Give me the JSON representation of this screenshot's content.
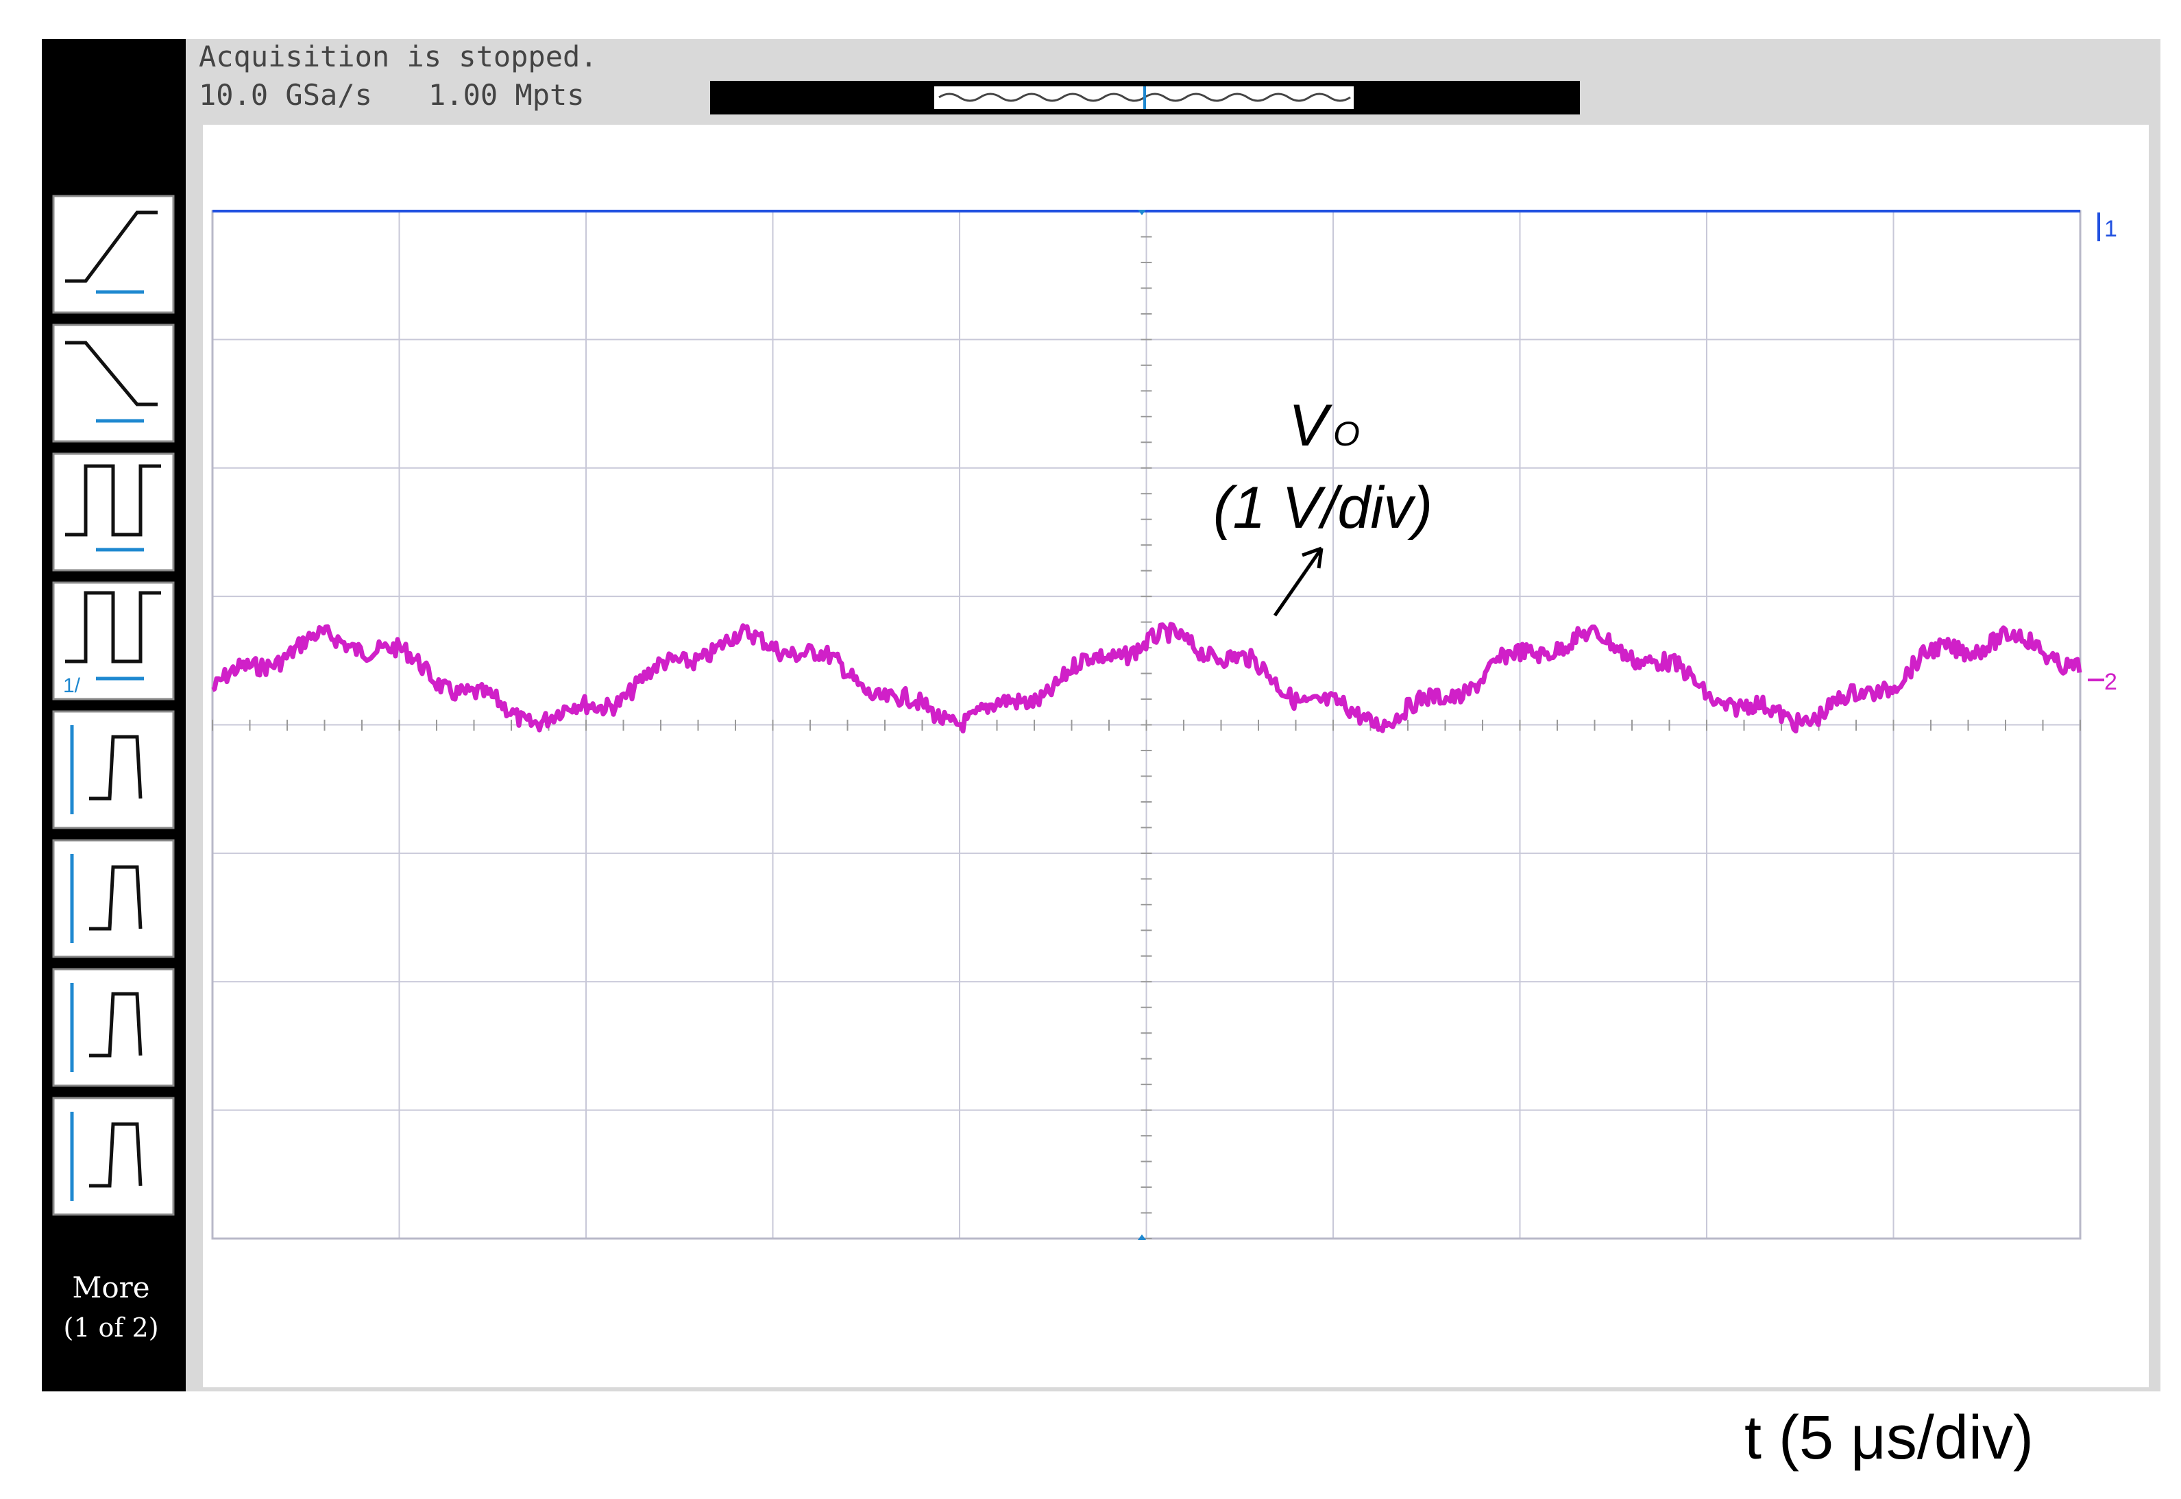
{
  "status": {
    "line1": "Acquisition is stopped.",
    "sample_rate": "10.0 GSa/s",
    "memory_depth": "1.00 Mpts"
  },
  "markers": {
    "channel1": "1",
    "channel2": "2"
  },
  "softkeys": {
    "fourth_key": "1/",
    "more": "More",
    "page": "(1 of 2)"
  },
  "annotation": {
    "signal": "V",
    "subscript": "O",
    "scale": "(1 V/div)"
  },
  "time_scale": "t (5 μs/div)"
}
